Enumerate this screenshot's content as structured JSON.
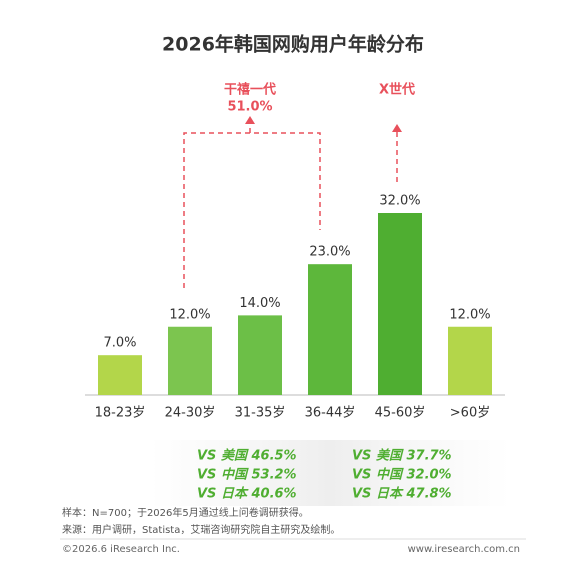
{
  "chart_data": {
    "type": "bar",
    "title": "2026年韩国网购用户年龄分布",
    "categories": [
      "18-23岁",
      "24-30岁",
      "31-35岁",
      "36-44岁",
      "45-60岁",
      ">60岁"
    ],
    "values": [
      7,
      12,
      14,
      23,
      32,
      12
    ],
    "value_labels": [
      "7.0%",
      "12.0%",
      "14.0%",
      "23.0%",
      "32.0%",
      "12.0%"
    ],
    "colors": [
      "#b3d64a",
      "#7cc54f",
      "#6cbf47",
      "#5db73b",
      "#4fae31",
      "#b3d64a"
    ],
    "ylim": [
      0,
      32
    ],
    "annotations": [
      {
        "label": "干禧一代",
        "value_label": "51.0%"
      },
      {
        "label": "X世代"
      }
    ]
  },
  "comparisons": [
    [
      "VS 美国 46.5%",
      "VS 中国 53.2%",
      "VS 日本 40.6%"
    ],
    [
      "VS 美国 37.7%",
      "VS 中国 32.0%",
      "VS 日本 47.8%"
    ]
  ],
  "footer": {
    "notes": [
      "样本：N=700；于2026年5月通过线上问卷调研获得。",
      "来源：用户调研，Statista，艾瑞咨询研究院自主研究及绘制。"
    ],
    "copyright": "©2026.6 iResearch Inc.",
    "website": "www.iresearch.com.cn"
  }
}
